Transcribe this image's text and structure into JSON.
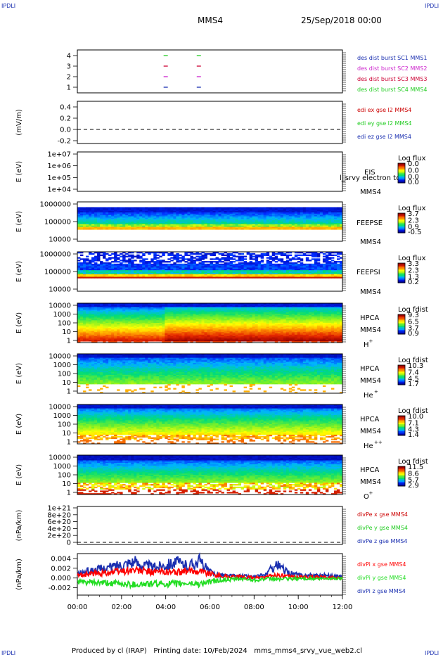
{
  "corner_label": "IPDLI",
  "header": {
    "spacecraft": "MMS4",
    "date": "25/Sep/2018 00:00"
  },
  "footer": {
    "text": "Produced by cl (IRAP)   Printing date: 10/Feb/2024   mms_mms4_srvy_vue_web2.cl"
  },
  "chart_data": [
    {
      "type": "line",
      "panel": "burst-flags",
      "yticks": [
        "1",
        "2",
        "3",
        "4"
      ],
      "xlim": [
        0,
        12
      ],
      "series": [
        {
          "name": "des dist burst SC1 MMS1",
          "color": "#1a2fb0",
          "y": 1,
          "x": [
            4.0,
            5.5
          ]
        },
        {
          "name": "des dist burst SC2 MMS2",
          "color": "#cc22cc",
          "y": 2,
          "x": [
            4.0,
            5.5
          ]
        },
        {
          "name": "des dist burst SC3 MMS3",
          "color": "#cc0033",
          "y": 3,
          "x": [
            4.0,
            5.5
          ]
        },
        {
          "name": "des dist burst SC4 MMS4",
          "color": "#22cc22",
          "y": 4,
          "x": [
            4.0,
            5.5
          ]
        }
      ]
    },
    {
      "type": "line",
      "panel": "edi-e",
      "ylabel": "(mV/m)",
      "yticks": [
        "0.4",
        "0.2",
        "0.0",
        "-0.2"
      ],
      "ylim": [
        -0.25,
        0.5
      ],
      "series": [
        {
          "name": "edi ex gse l2 MMS4",
          "color": "#cc0000"
        },
        {
          "name": "edi ey gse l2 MMS4",
          "color": "#22cc22"
        },
        {
          "name": "edi ez gse l2 MMS4",
          "color": "#1a2fb0"
        }
      ]
    },
    {
      "type": "heatmap",
      "panel": "eis",
      "ylabel": "E (eV)",
      "yticks": [
        "1e+07",
        "1e+06",
        "1e+05",
        "1e+04"
      ],
      "labels": [
        "EIS",
        "MMS4"
      ],
      "overlay_text": "l_srvy electron to",
      "colorbar": {
        "title": "Log flux",
        "ticks": [
          "0.0",
          "0.0",
          "0.0",
          "0.0"
        ]
      }
    },
    {
      "type": "heatmap",
      "panel": "feepse",
      "ylabel": "E (eV)",
      "yticks": [
        "1000000",
        "100000",
        "10000"
      ],
      "labels": [
        "FEEPSE",
        "MMS4"
      ],
      "colorbar": {
        "title": "Log flux",
        "ticks": [
          "3.7",
          "2.3",
          "0.9",
          "-0.5"
        ]
      }
    },
    {
      "type": "heatmap",
      "panel": "feepsi",
      "ylabel": "E (eV)",
      "yticks": [
        "1000000",
        "100000",
        "10000"
      ],
      "labels": [
        "FEEPSI",
        "MMS4"
      ],
      "colorbar": {
        "title": "Log flux",
        "ticks": [
          "3.3",
          "2.3",
          "1.3",
          "0.2"
        ]
      }
    },
    {
      "type": "heatmap",
      "panel": "hpca-h",
      "ylabel": "E (eV)",
      "yticks": [
        "10000",
        "1000",
        "100",
        "10",
        "1"
      ],
      "labels": [
        "HPCA",
        "MMS4"
      ],
      "species": "H",
      "charge": "+",
      "colorbar": {
        "title": "Log fdist",
        "ticks": [
          "9.3",
          "6.5",
          "3.7",
          "0.9"
        ]
      }
    },
    {
      "type": "heatmap",
      "panel": "hpca-he",
      "ylabel": "E (eV)",
      "yticks": [
        "10000",
        "1000",
        "100",
        "10",
        "1"
      ],
      "labels": [
        "HPCA",
        "MMS4"
      ],
      "species": "He",
      "charge": "+",
      "colorbar": {
        "title": "Log fdist",
        "ticks": [
          "10.3",
          "7.4",
          "4.5",
          "1.7"
        ]
      }
    },
    {
      "type": "heatmap",
      "panel": "hpca-hepp",
      "ylabel": "E (eV)",
      "yticks": [
        "10000",
        "1000",
        "100",
        "10",
        "1"
      ],
      "labels": [
        "HPCA",
        "MMS4"
      ],
      "species": "He",
      "charge": "++",
      "colorbar": {
        "title": "Log fdist",
        "ticks": [
          "10.0",
          "7.1",
          "4.3",
          "1.4"
        ]
      }
    },
    {
      "type": "heatmap",
      "panel": "hpca-o",
      "ylabel": "E (eV)",
      "yticks": [
        "10000",
        "1000",
        "100",
        "10",
        "1"
      ],
      "labels": [
        "HPCA",
        "MMS4"
      ],
      "species": "O",
      "charge": "+",
      "colorbar": {
        "title": "Log fdist",
        "ticks": [
          "11.5",
          "8.6",
          "5.7",
          "2.9"
        ]
      }
    },
    {
      "type": "line",
      "panel": "divpe",
      "ylabel": "(nPa/km)",
      "yticks": [
        "1e+21",
        "8e+20",
        "6e+20",
        "4e+20",
        "2e+20",
        "0"
      ],
      "ylim": [
        0,
        1e+21
      ],
      "series": [
        {
          "name": "divPe x gse MMS4",
          "color": "#cc0000"
        },
        {
          "name": "divPe y gse MMS4",
          "color": "#22cc22"
        },
        {
          "name": "divPe z gse MMS4",
          "color": "#1a2fb0"
        }
      ]
    },
    {
      "type": "line",
      "panel": "divpi",
      "ylabel": "(nPa/km)",
      "yticks": [
        "0.004",
        "0.002",
        "0.000",
        "-0.002"
      ],
      "ylim": [
        -0.0035,
        0.005
      ],
      "series": [
        {
          "name": "divPi x gse MMS4",
          "color": "#ff0000",
          "x": [
            0,
            0.5,
            1,
            1.5,
            2,
            2.5,
            3,
            3.5,
            4,
            4.5,
            5,
            5.5,
            6,
            6.5,
            7,
            7.5,
            8,
            8.5,
            9,
            9.5,
            10,
            10.5,
            11,
            11.5,
            12
          ],
          "y": [
            0.0005,
            0.0008,
            0.001,
            0.0012,
            0.0014,
            0.0016,
            0.0014,
            0.0012,
            0.0013,
            0.0012,
            0.0013,
            0.0016,
            0.0009,
            0.0004,
            0.0003,
            0.0002,
            0.0001,
            0.0002,
            0.0006,
            0.0003,
            0.0002,
            0.0002,
            0.0002,
            0.0001,
            0.0001
          ]
        },
        {
          "name": "divPi y gse MMS4",
          "color": "#22dd22",
          "x": [
            0,
            0.5,
            1,
            1.5,
            2,
            2.5,
            3,
            3.5,
            4,
            4.5,
            5,
            5.5,
            6,
            6.5,
            7,
            7.5,
            8,
            8.5,
            9,
            9.5,
            10,
            10.5,
            11,
            11.5,
            12
          ],
          "y": [
            -0.0008,
            -0.0009,
            -0.001,
            -0.0011,
            -0.0012,
            -0.0013,
            -0.0013,
            -0.0012,
            -0.0012,
            -0.0012,
            -0.0011,
            -0.0012,
            -0.0008,
            -0.0005,
            -0.0003,
            -0.0002,
            -0.0004,
            -0.0002,
            -0.0002,
            -0.0002,
            -0.0001,
            -0.0001,
            -0.0002,
            -0.0001,
            -0.0001
          ]
        },
        {
          "name": "divPi z gse MMS4",
          "color": "#1a2fb0",
          "x": [
            0,
            0.5,
            1,
            1.5,
            2,
            2.5,
            3,
            3.5,
            4,
            4.5,
            5,
            5.5,
            6,
            6.5,
            7,
            7.5,
            8,
            8.5,
            9,
            9.5,
            10,
            10.5,
            11,
            11.5,
            12
          ],
          "y": [
            0.0008,
            0.0014,
            0.0018,
            0.0022,
            0.0028,
            0.0034,
            0.0026,
            0.0022,
            0.0028,
            0.0032,
            0.0024,
            0.0036,
            0.0012,
            0.0006,
            0.0004,
            0.0004,
            0.0002,
            0.0006,
            0.0028,
            0.0012,
            0.0006,
            0.0005,
            0.0006,
            0.0004,
            0.0003
          ]
        }
      ]
    }
  ],
  "xaxis": {
    "xlim": [
      0,
      12
    ],
    "ticks": [
      "00:00",
      "02:00",
      "04:00",
      "06:00",
      "08:00",
      "10:00",
      "12:00"
    ]
  }
}
